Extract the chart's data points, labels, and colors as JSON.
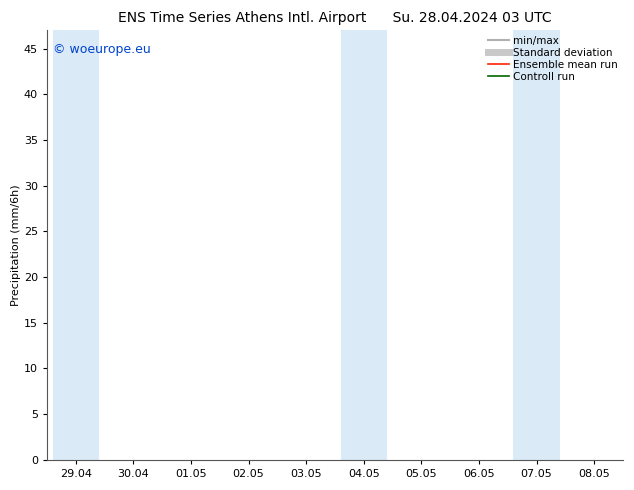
{
  "title_left": "ENS Time Series Athens Intl. Airport",
  "title_right": "Su. 28.04.2024 03 UTC",
  "ylabel": "Precipitation (mm/6h)",
  "watermark": "© woeurope.eu",
  "xlim": [
    0,
    9
  ],
  "ylim": [
    0,
    47
  ],
  "yticks": [
    0,
    5,
    10,
    15,
    20,
    25,
    30,
    35,
    40,
    45
  ],
  "xtick_positions": [
    0,
    1,
    2,
    3,
    4,
    5,
    6,
    7,
    8,
    9
  ],
  "xtick_labels": [
    "29.04",
    "30.04",
    "01.05",
    "02.05",
    "03.05",
    "04.05",
    "05.05",
    "06.05",
    "07.05",
    "08.05"
  ],
  "shaded_bands": [
    {
      "xmin": -0.4,
      "xmax": 0.4
    },
    {
      "xmin": 4.6,
      "xmax": 5.4
    },
    {
      "xmin": 7.6,
      "xmax": 8.4
    }
  ],
  "band_color": "#daeaf7",
  "background_color": "#ffffff",
  "legend_items": [
    {
      "label": "min/max",
      "color": "#b0b0b0",
      "lw": 1.5
    },
    {
      "label": "Standard deviation",
      "color": "#c8c8c8",
      "lw": 5
    },
    {
      "label": "Ensemble mean run",
      "color": "#ff2200",
      "lw": 1.2
    },
    {
      "label": "Controll run",
      "color": "#006600",
      "lw": 1.2
    }
  ],
  "title_fontsize": 10,
  "ylabel_fontsize": 8,
  "tick_fontsize": 8,
  "watermark_color": "#0044cc",
  "watermark_fontsize": 9,
  "legend_fontsize": 7.5
}
